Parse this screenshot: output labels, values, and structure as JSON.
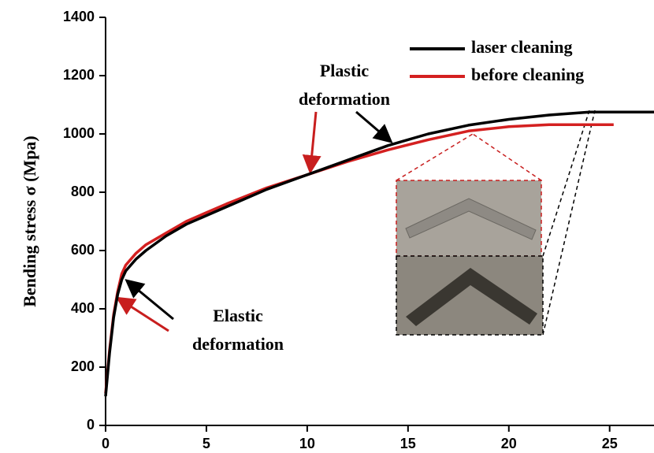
{
  "chart_data": {
    "type": "line",
    "y_label": "Bending stress σ (Mpa)",
    "xlim": [
      0,
      27.2
    ],
    "ylim": [
      0,
      1400
    ],
    "xticks": [
      0,
      5,
      10,
      15,
      20,
      25
    ],
    "yticks": [
      0,
      200,
      400,
      600,
      800,
      1000,
      1200,
      1400
    ],
    "legend": "top right",
    "series": [
      {
        "name": "laser cleaning",
        "color": "#000000",
        "x": [
          0,
          0.2,
          0.4,
          0.6,
          0.8,
          1,
          1.5,
          2,
          3,
          4,
          5,
          6,
          8,
          10,
          12,
          14,
          16,
          18,
          20,
          22,
          24,
          27.2
        ],
        "values": [
          100,
          250,
          370,
          450,
          500,
          530,
          570,
          600,
          650,
          690,
          720,
          750,
          810,
          860,
          910,
          960,
          1000,
          1030,
          1050,
          1065,
          1075,
          1075
        ]
      },
      {
        "name": "before cleaning",
        "color": "#d42020",
        "x": [
          0,
          0.2,
          0.4,
          0.6,
          0.8,
          1,
          1.5,
          2,
          3,
          4,
          5,
          6,
          8,
          10,
          12,
          14,
          16,
          18,
          20,
          22,
          25.2
        ],
        "values": [
          110,
          260,
          380,
          460,
          520,
          550,
          590,
          620,
          660,
          700,
          730,
          760,
          815,
          860,
          905,
          945,
          980,
          1010,
          1025,
          1032,
          1032
        ]
      }
    ],
    "annotations": [
      {
        "lines": [
          "Plastic",
          "deformation"
        ]
      },
      {
        "lines": [
          "Elastic",
          "deformation"
        ]
      }
    ]
  }
}
